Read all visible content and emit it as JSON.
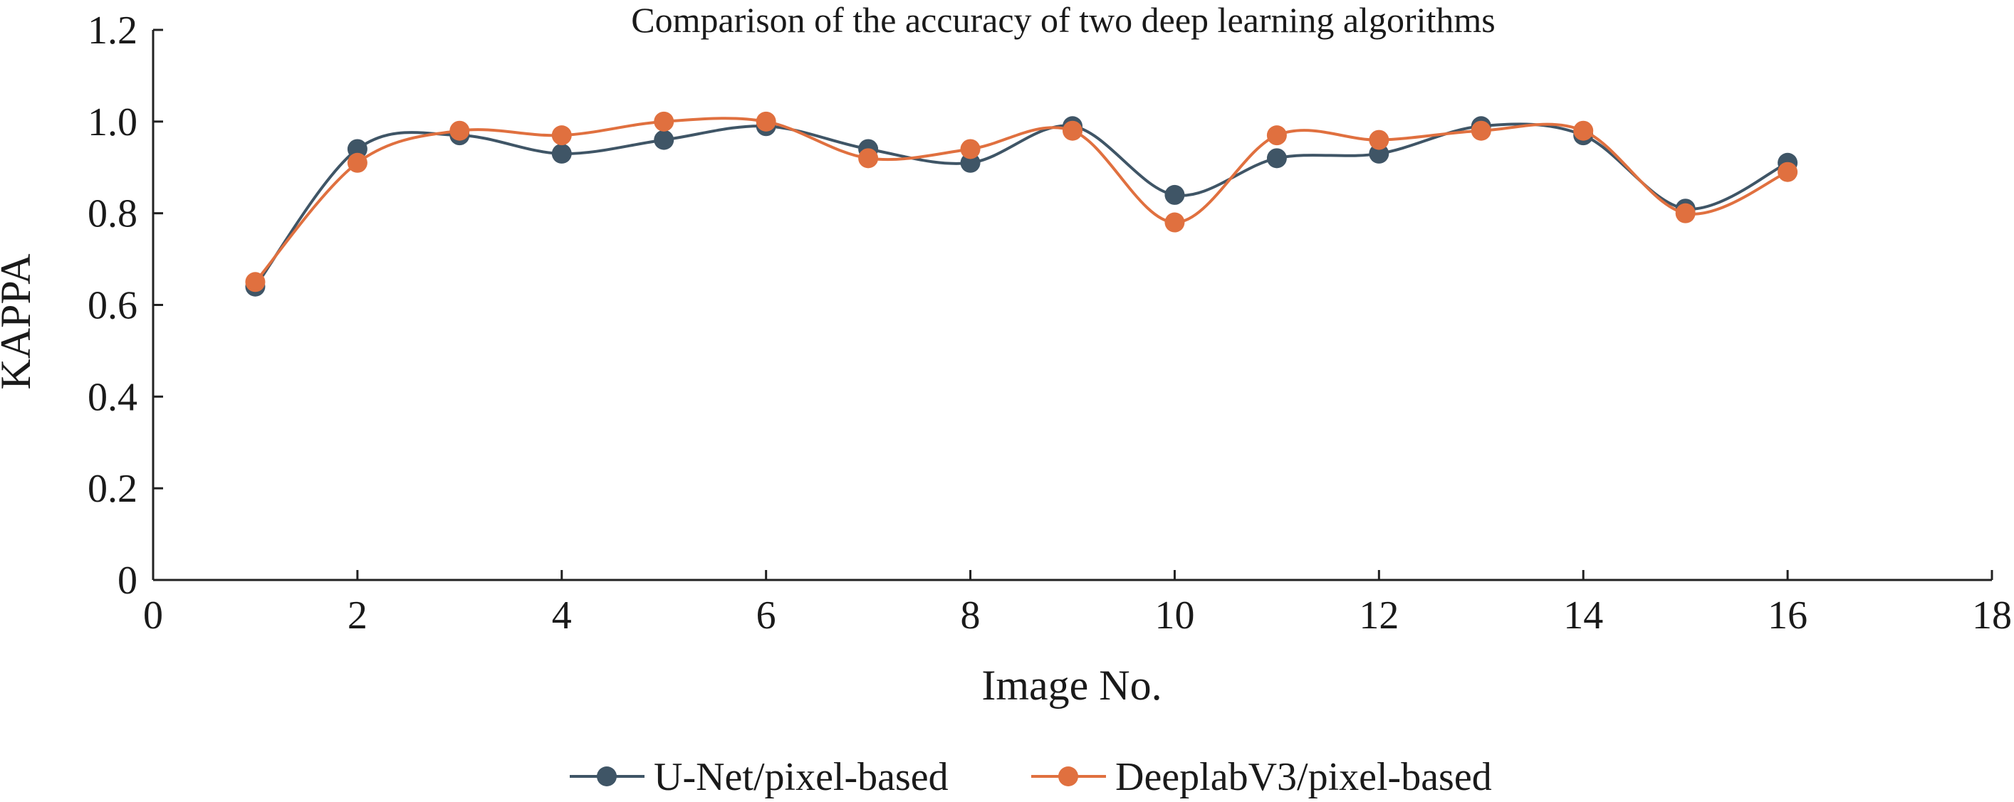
{
  "chart_data": {
    "type": "line",
    "title": "Comparison of the accuracy of two deep learning algorithms",
    "xlabel": "Image No.",
    "ylabel": "KAPPA",
    "xlim": [
      0,
      18
    ],
    "ylim": [
      0,
      1.2
    ],
    "xticks": [
      0,
      2,
      4,
      6,
      8,
      10,
      12,
      14,
      16,
      18
    ],
    "yticks": [
      0,
      0.2,
      0.4,
      0.6,
      0.8,
      1.0,
      1.2
    ],
    "xtick_labels": [
      "0",
      "2",
      "4",
      "6",
      "8",
      "10",
      "12",
      "14",
      "16",
      "18"
    ],
    "ytick_labels": [
      "0",
      "0.2",
      "0.4",
      "0.6",
      "0.8",
      "1.0",
      "1.2"
    ],
    "grid": false,
    "smooth": true,
    "legend_position": "bottom-center",
    "x": [
      1,
      2,
      3,
      4,
      5,
      6,
      7,
      8,
      9,
      10,
      11,
      12,
      13,
      14,
      15,
      16
    ],
    "series": [
      {
        "name": "U-Net/pixel-based",
        "color": "#3f5566",
        "values": [
          0.64,
          0.94,
          0.97,
          0.93,
          0.96,
          0.99,
          0.94,
          0.91,
          0.99,
          0.84,
          0.92,
          0.93,
          0.99,
          0.97,
          0.81,
          0.91
        ]
      },
      {
        "name": "DeeplabV3/pixel-based",
        "color": "#e0703f",
        "values": [
          0.65,
          0.91,
          0.98,
          0.97,
          1.0,
          1.0,
          0.92,
          0.94,
          0.98,
          0.78,
          0.97,
          0.96,
          0.98,
          0.98,
          0.8,
          0.89
        ]
      }
    ]
  }
}
